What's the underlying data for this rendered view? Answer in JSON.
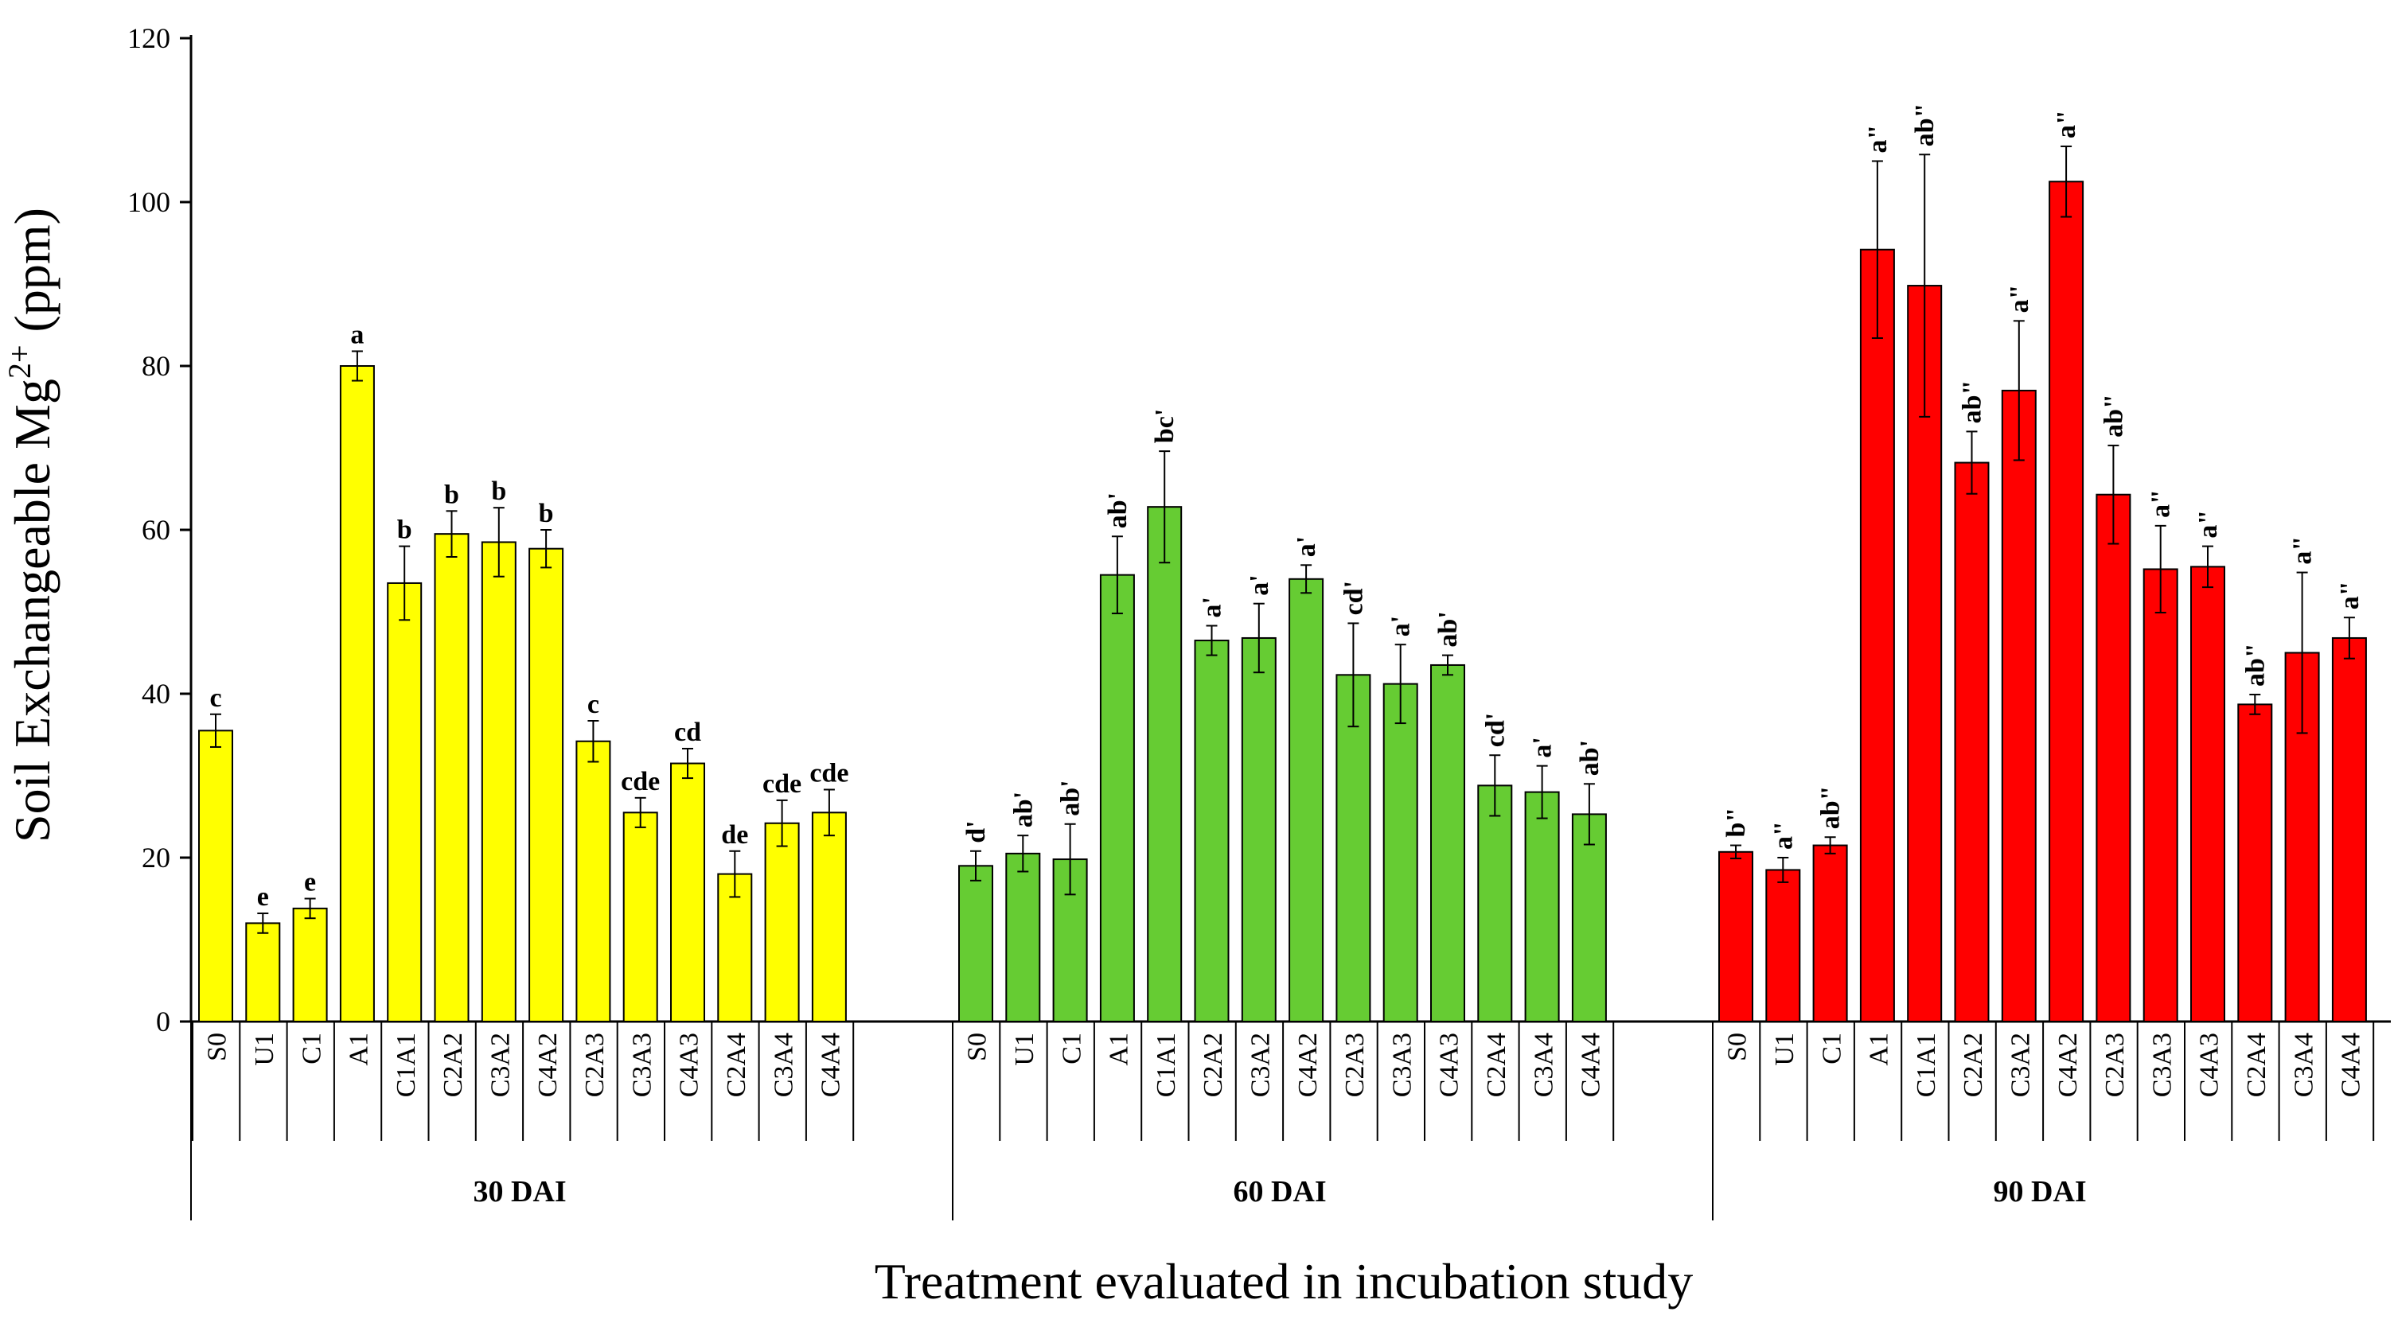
{
  "chart_data": {
    "type": "bar",
    "ylabel": "Soil Exchangeable Mg",
    "ylabel_sup": "2+",
    "ylabel_unit": " (ppm)",
    "xlabel": "Treatment evaluated in incubation study",
    "ylim": [
      0,
      120
    ],
    "yticks": [
      0,
      20,
      40,
      60,
      80,
      100,
      120
    ],
    "categories": [
      "S0",
      "U1",
      "C1",
      "A1",
      "C1A1",
      "C2A2",
      "C3A2",
      "C4A2",
      "C2A3",
      "C3A3",
      "C4A3",
      "C2A4",
      "C3A4",
      "C4A4"
    ],
    "groups": [
      {
        "name": "30 DAI",
        "color": "#ffff00",
        "values": [
          35.5,
          12.0,
          13.8,
          80.0,
          53.5,
          59.5,
          58.5,
          57.7,
          34.2,
          25.5,
          31.5,
          18.0,
          24.2,
          25.5
        ],
        "errors": [
          2.0,
          1.2,
          1.2,
          1.8,
          4.5,
          2.8,
          4.2,
          2.3,
          2.5,
          1.8,
          1.8,
          2.8,
          2.8,
          2.8
        ],
        "labels": [
          "c",
          "e",
          "e",
          "a",
          "b",
          "b",
          "b",
          "b",
          "c",
          "cde",
          "cd",
          "de",
          "cde",
          "cde"
        ],
        "rotated": false
      },
      {
        "name": "60 DAI",
        "color": "#66cc33",
        "values": [
          19.0,
          20.5,
          19.8,
          54.5,
          62.8,
          46.5,
          46.8,
          54.0,
          42.3,
          41.2,
          43.5,
          28.8,
          28.0,
          25.3
        ],
        "errors": [
          1.8,
          2.2,
          4.3,
          4.7,
          6.8,
          1.8,
          4.2,
          1.7,
          6.3,
          4.8,
          1.2,
          3.7,
          3.2,
          3.7
        ],
        "labels": [
          "d'",
          "ab'",
          "ab'",
          "ab'",
          "bc'",
          "a'",
          "a'",
          "a'",
          "cd'",
          "a'",
          "ab'",
          "cd'",
          "a'",
          "ab'"
        ],
        "rotated": true
      },
      {
        "name": "90 DAI",
        "color": "#ff0000",
        "values": [
          20.7,
          18.5,
          21.5,
          94.2,
          89.8,
          68.2,
          77.0,
          102.5,
          64.3,
          55.2,
          55.5,
          38.7,
          45.0,
          46.8
        ],
        "errors": [
          0.8,
          1.5,
          1.0,
          10.8,
          16.0,
          3.8,
          8.5,
          4.3,
          6.0,
          5.3,
          2.5,
          1.2,
          9.8,
          2.5
        ],
        "labels": [
          "b\"",
          "a\"",
          "ab\"",
          "a\"",
          "ab\"",
          "ab\"",
          "a\"",
          "a\"",
          "ab\"",
          "a\"",
          "a\"",
          "ab\"",
          "a\"",
          "a\""
        ],
        "rotated": true
      }
    ]
  }
}
